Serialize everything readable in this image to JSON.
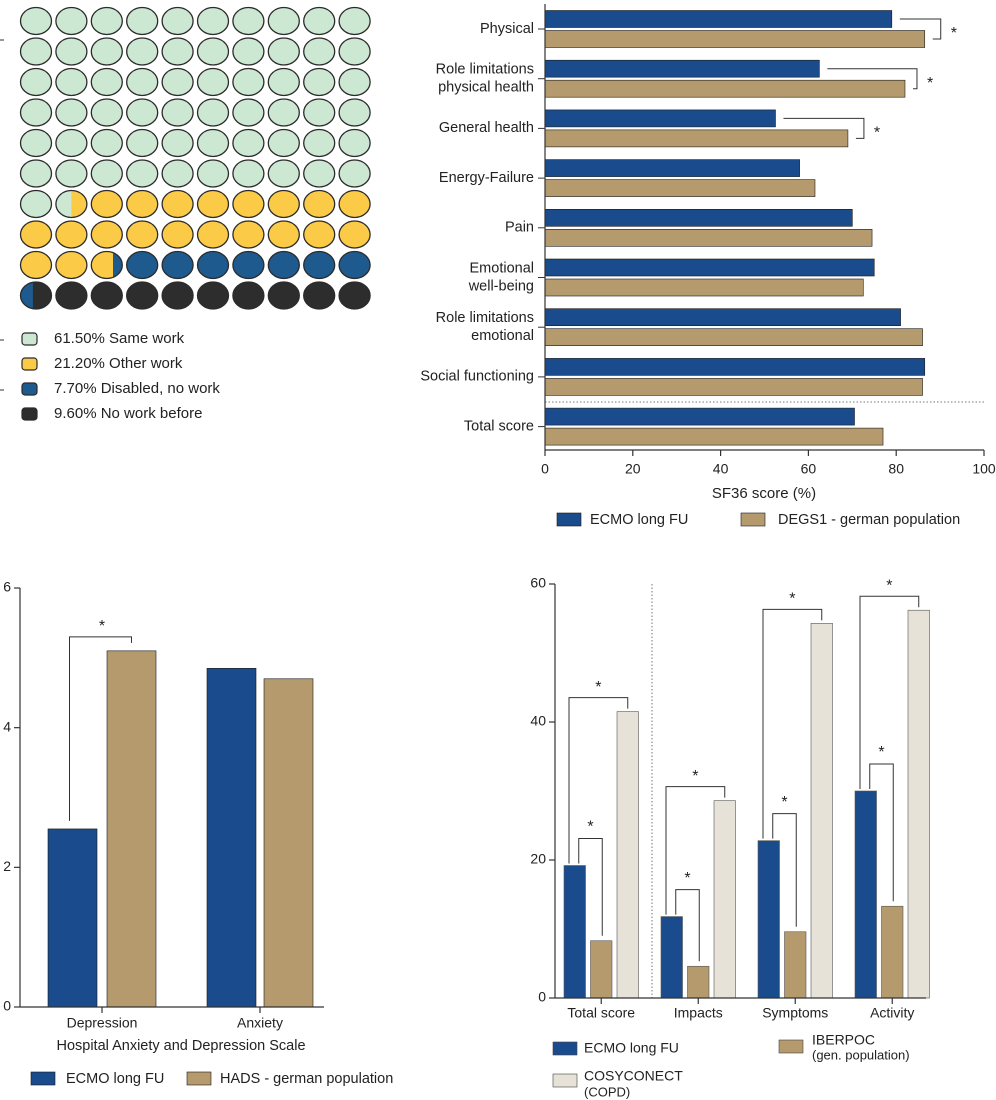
{
  "colors": {
    "ecmo": "#1a4b8c",
    "reference": "#b59a6e",
    "copd": "#e6e2d8",
    "same_work": "#cde8d2",
    "other_work": "#fbcb47",
    "disabled": "#1e5a8e",
    "no_work_before": "#2d2d2d",
    "axis": "#333333"
  },
  "chart_data": [
    {
      "id": "waffle",
      "type": "waffle",
      "rows": 10,
      "cols": 10,
      "categories": [
        {
          "label": "61.50%  Same work",
          "value": 61.5,
          "color_key": "same_work"
        },
        {
          "label": "21.20%  Other work",
          "value": 21.2,
          "color_key": "other_work"
        },
        {
          "label": "7.70%  Disabled, no work",
          "value": 7.7,
          "color_key": "disabled"
        },
        {
          "label": "9.60%  No work before",
          "value": 9.6,
          "color_key": "no_work_before"
        }
      ]
    },
    {
      "id": "sf36",
      "type": "bar",
      "orientation": "horizontal",
      "xlabel": "SF36 score (%)",
      "xlim": [
        0,
        100
      ],
      "xticks": [
        "0",
        "20",
        "40",
        "60",
        "80",
        "100"
      ],
      "categories": [
        [
          "Physical"
        ],
        [
          "Role limitations",
          "physical health"
        ],
        [
          "General health"
        ],
        [
          "Energy-Failure"
        ],
        [
          "Pain"
        ],
        [
          "Emotional",
          "well-being"
        ],
        [
          "Role limitations",
          "emotional"
        ],
        [
          "Social functioning"
        ],
        [
          "Total score"
        ]
      ],
      "series": [
        {
          "name": "ECMO long FU",
          "color_key": "ecmo",
          "values": [
            79,
            62.5,
            52.5,
            58,
            70,
            75,
            81,
            86.5,
            70.5
          ]
        },
        {
          "name": "DEGS1 - german population",
          "color_key": "reference",
          "values": [
            86.5,
            82,
            69,
            61.5,
            74.5,
            72.5,
            86,
            86,
            77
          ]
        }
      ],
      "significance": [
        {
          "category": 0,
          "label": "*"
        },
        {
          "category": 1,
          "label": "*"
        },
        {
          "category": 2,
          "label": "*"
        }
      ]
    },
    {
      "id": "hads",
      "type": "bar",
      "orientation": "vertical",
      "title": "Hospital Anxiety and Depression Scale",
      "ylim": [
        0,
        6
      ],
      "yticks": [
        "0",
        "2",
        "4",
        "6"
      ],
      "categories": [
        "Depression",
        "Anxiety"
      ],
      "series": [
        {
          "name": "ECMO long FU",
          "color_key": "ecmo",
          "values": [
            2.55,
            4.85
          ]
        },
        {
          "name": "HADS - german population",
          "color_key": "reference",
          "values": [
            5.1,
            4.7
          ]
        }
      ],
      "significance": [
        {
          "category": 0,
          "label": "*"
        }
      ]
    },
    {
      "id": "copd",
      "type": "bar",
      "orientation": "vertical",
      "ylim": [
        0,
        60
      ],
      "yticks": [
        "0",
        "20",
        "40",
        "60"
      ],
      "categories": [
        "Total score",
        "Impacts",
        "Symptoms",
        "Activity"
      ],
      "series": [
        {
          "name": "ECMO long FU",
          "color_key": "ecmo",
          "values": [
            19.2,
            11.8,
            22.8,
            30
          ]
        },
        {
          "name": "IBERPOC (gen. population)",
          "color_key": "reference",
          "values": [
            8.3,
            4.6,
            9.6,
            13.3
          ]
        },
        {
          "name": "COSYCONECT (COPD)",
          "color_key": "copd",
          "values": [
            41.5,
            28.6,
            54.3,
            56.2
          ]
        }
      ],
      "significance": [
        {
          "category": 0,
          "pair": "ecmo-iberpoc",
          "label": "*"
        },
        {
          "category": 0,
          "pair": "ecmo-cosyconect",
          "label": "*"
        },
        {
          "category": 1,
          "pair": "ecmo-iberpoc",
          "label": "*"
        },
        {
          "category": 1,
          "pair": "ecmo-cosyconect",
          "label": "*"
        },
        {
          "category": 2,
          "pair": "ecmo-iberpoc",
          "label": "*"
        },
        {
          "category": 2,
          "pair": "ecmo-cosyconect",
          "label": "*"
        },
        {
          "category": 3,
          "pair": "ecmo-iberpoc",
          "label": "*"
        },
        {
          "category": 3,
          "pair": "ecmo-cosyconect",
          "label": "*"
        }
      ],
      "legend": [
        {
          "lines": [
            "ECMO long FU"
          ],
          "color_key": "ecmo"
        },
        {
          "lines": [
            "IBERPOC",
            "(gen. population)"
          ],
          "color_key": "reference"
        },
        {
          "lines": [
            "COSYCONECT",
            "(COPD)"
          ],
          "color_key": "copd"
        }
      ]
    }
  ]
}
